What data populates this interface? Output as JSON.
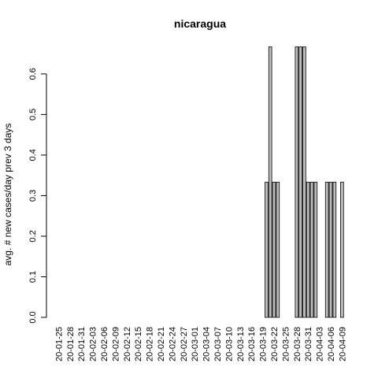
{
  "chart_data": {
    "type": "bar",
    "title": "nicaragua",
    "xlabel": "",
    "ylabel": "avg. # new cases/day prev  3  days",
    "ylim": [
      0,
      0.6667
    ],
    "yticks": [
      "0.0",
      "0.1",
      "0.2",
      "0.3",
      "0.4",
      "0.5",
      "0.6"
    ],
    "ytick_values": [
      0,
      0.1,
      0.2,
      0.3,
      0.4,
      0.5,
      0.6
    ],
    "categories": [
      "20-01-25",
      "20-01-26",
      "20-01-27",
      "20-01-28",
      "20-01-29",
      "20-01-30",
      "20-01-31",
      "20-02-01",
      "20-02-02",
      "20-02-03",
      "20-02-04",
      "20-02-05",
      "20-02-06",
      "20-02-07",
      "20-02-08",
      "20-02-09",
      "20-02-10",
      "20-02-11",
      "20-02-12",
      "20-02-13",
      "20-02-14",
      "20-02-15",
      "20-02-16",
      "20-02-17",
      "20-02-18",
      "20-02-19",
      "20-02-20",
      "20-02-21",
      "20-02-22",
      "20-02-23",
      "20-02-24",
      "20-02-25",
      "20-02-26",
      "20-02-27",
      "20-02-28",
      "20-02-29",
      "20-03-01",
      "20-03-02",
      "20-03-03",
      "20-03-04",
      "20-03-05",
      "20-03-06",
      "20-03-07",
      "20-03-08",
      "20-03-09",
      "20-03-10",
      "20-03-11",
      "20-03-12",
      "20-03-13",
      "20-03-14",
      "20-03-15",
      "20-03-16",
      "20-03-17",
      "20-03-18",
      "20-03-19",
      "20-03-20",
      "20-03-21",
      "20-03-22",
      "20-03-23",
      "20-03-24",
      "20-03-25",
      "20-03-26",
      "20-03-27",
      "20-03-28",
      "20-03-29",
      "20-03-30",
      "20-03-31",
      "20-04-01",
      "20-04-02",
      "20-04-03",
      "20-04-04",
      "20-04-05",
      "20-04-06",
      "20-04-07",
      "20-04-08",
      "20-04-09"
    ],
    "values": [
      0,
      0,
      0,
      0,
      0,
      0,
      0,
      0,
      0,
      0,
      0,
      0,
      0,
      0,
      0,
      0,
      0,
      0,
      0,
      0,
      0,
      0,
      0,
      0,
      0,
      0,
      0,
      0,
      0,
      0,
      0,
      0,
      0,
      0,
      0,
      0,
      0,
      0,
      0,
      0,
      0,
      0,
      0,
      0,
      0,
      0,
      0,
      0,
      0,
      0,
      0,
      0,
      0,
      0,
      0,
      0.3333,
      0.6667,
      0.3333,
      0.3333,
      0,
      0,
      0,
      0,
      0.6667,
      0.6667,
      0.6667,
      0.3333,
      0.3333,
      0.3333,
      0,
      0,
      0.3333,
      0.3333,
      0.3333,
      0,
      0.3333
    ],
    "tick_label_every": 3,
    "bar_color": "#bebebe",
    "bar_border": "#000000",
    "grid": false,
    "legend": "none"
  }
}
